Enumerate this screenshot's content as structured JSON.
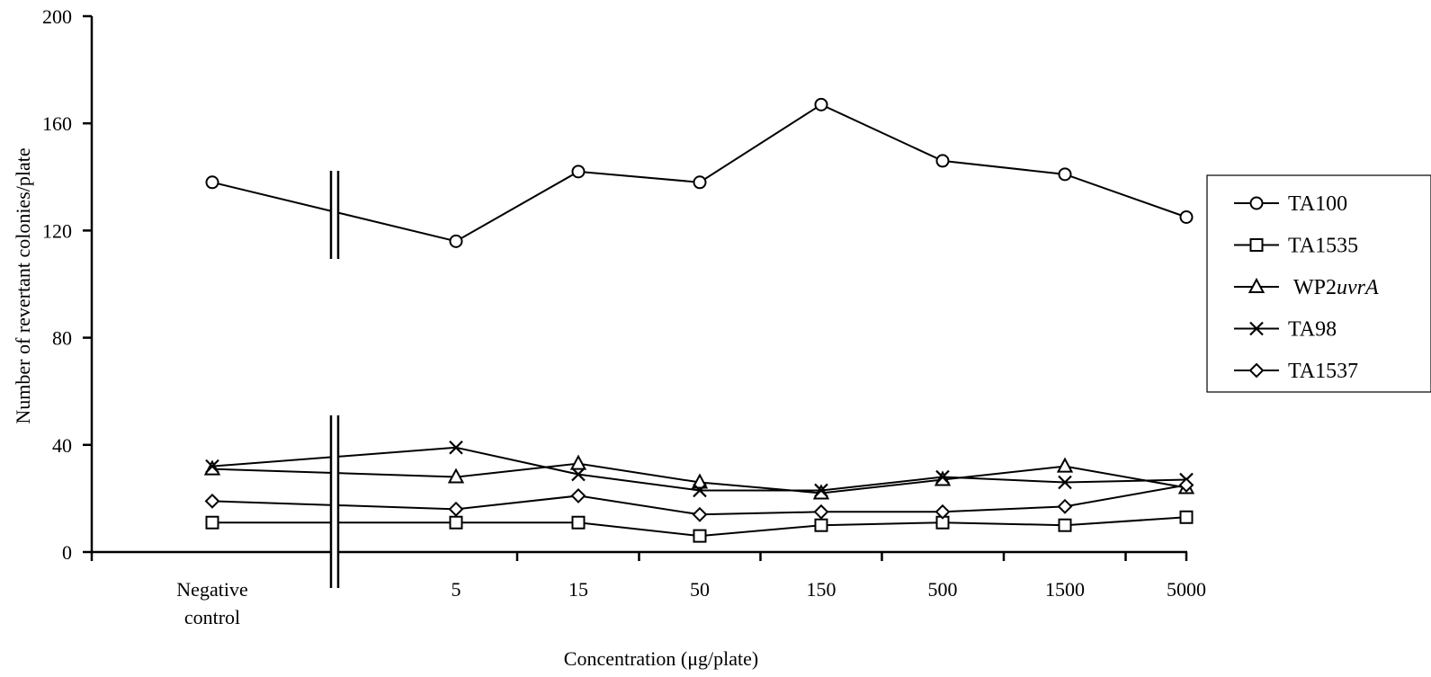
{
  "chart_data": {
    "type": "line",
    "title": "",
    "ylabel": "Number of revertant colonies/plate",
    "xlabel": "Concentration (μg/plate)",
    "ylim": [
      0,
      200
    ],
    "yticks": [
      0,
      40,
      80,
      120,
      160,
      200
    ],
    "categories": [
      "Negative control",
      "5",
      "15",
      "50",
      "150",
      "500",
      "1500",
      "5000"
    ],
    "category_lines": [
      [
        "Negative",
        "control"
      ],
      [
        "5"
      ],
      [
        "15"
      ],
      [
        "50"
      ],
      [
        "150"
      ],
      [
        "500"
      ],
      [
        "1500"
      ],
      [
        "5000"
      ]
    ],
    "axis_break": "between Negative control and 5",
    "grid": false,
    "legend_position": "right",
    "series": [
      {
        "name": "TA100",
        "marker": "circle",
        "values": [
          138,
          116,
          142,
          138,
          167,
          146,
          141,
          125
        ]
      },
      {
        "name": "TA1535",
        "marker": "square",
        "values": [
          11,
          11,
          11,
          6,
          10,
          11,
          10,
          13
        ]
      },
      {
        "name": "WP2uvrA",
        "name_parts": [
          "WP2",
          "uvrA"
        ],
        "marker": "triangle",
        "values": [
          31,
          28,
          33,
          26,
          22,
          27,
          32,
          24
        ]
      },
      {
        "name": "TA98",
        "marker": "x",
        "values": [
          32,
          39,
          29,
          23,
          23,
          28,
          26,
          27
        ]
      },
      {
        "name": "TA1537",
        "marker": "diamond",
        "values": [
          19,
          16,
          21,
          14,
          15,
          15,
          17,
          25
        ]
      }
    ]
  }
}
